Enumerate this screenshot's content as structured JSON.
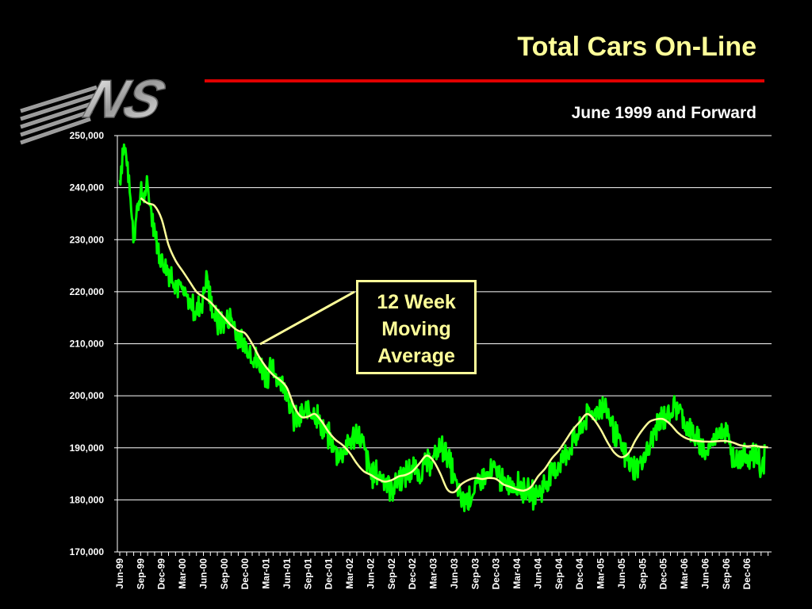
{
  "header": {
    "title": "Total Cars On-Line",
    "subtitle": "June 1999 and Forward",
    "rule_color": "#e00000",
    "logo_text": "NS"
  },
  "callout": {
    "lines": [
      "12 Week",
      "Moving",
      "Average"
    ],
    "color": "#ffff99"
  },
  "colors": {
    "background": "#000000",
    "daily_series": "#00ff00",
    "moving_average": "#ffff99",
    "title": "#ffff99",
    "gridlines": "#ffffff"
  },
  "chart_data": {
    "type": "line",
    "title": "Total Cars On-Line",
    "subtitle": "June 1999 and Forward",
    "xlabel": "",
    "ylabel": "",
    "ylim": [
      170000,
      250000
    ],
    "yticks": [
      170000,
      180000,
      190000,
      200000,
      210000,
      220000,
      230000,
      240000,
      250000
    ],
    "ytick_labels": [
      "170,000",
      "180,000",
      "190,000",
      "200,000",
      "210,000",
      "220,000",
      "230,000",
      "240,000",
      "250,000"
    ],
    "xtick_labels": [
      "Jun-99",
      "Sep-99",
      "Dec-99",
      "Mar-00",
      "Jun-00",
      "Sep-00",
      "Dec-00",
      "Mar-01",
      "Jun-01",
      "Sep-01",
      "Dec-01",
      "Mar-02",
      "Jun-02",
      "Sep-02",
      "Dec-02",
      "Mar-03",
      "Jun-03",
      "Sep-03",
      "Dec-03",
      "Mar-04",
      "Jun-04",
      "Sep-04",
      "Dec-04",
      "Mar-05",
      "Jun-05",
      "Sep-05",
      "Dec-05",
      "Mar-06",
      "Jun-06",
      "Sep-06",
      "Dec-06"
    ],
    "grid": true,
    "series": [
      {
        "style": "daily",
        "color": "#00ff00",
        "months": [
          0,
          0.5,
          1,
          1.5,
          2,
          2.5,
          3,
          3.5,
          4,
          4.5,
          5,
          5.5,
          6,
          7,
          8,
          9,
          10,
          11,
          12,
          12.5,
          13,
          14,
          15,
          16,
          17,
          18,
          19,
          20,
          21,
          22,
          23,
          24,
          25,
          26,
          27,
          28,
          29,
          30,
          31,
          32,
          33,
          34,
          35,
          36,
          37,
          38,
          39,
          40,
          41,
          42,
          43,
          44,
          45,
          46,
          47,
          48,
          49,
          50,
          51,
          52,
          53,
          54,
          55,
          56,
          57,
          58,
          59,
          60,
          61,
          62,
          63,
          64,
          65,
          66,
          67,
          68,
          69,
          70,
          71,
          72,
          73,
          74,
          75,
          76,
          77,
          78,
          79,
          80,
          81,
          82,
          83,
          84,
          85,
          86,
          87,
          88,
          89,
          90,
          91,
          91.5,
          92,
          92.5
        ],
        "values": [
          241000,
          248000,
          246000,
          238000,
          231000,
          236000,
          239000,
          238000,
          240000,
          236000,
          232000,
          228000,
          226000,
          224000,
          222000,
          220000,
          218000,
          216000,
          219000,
          223000,
          218000,
          214000,
          214000,
          215000,
          211000,
          210000,
          208000,
          206000,
          204000,
          205000,
          203000,
          201000,
          195000,
          196000,
          197000,
          197000,
          194000,
          192000,
          189000,
          189000,
          191000,
          193000,
          190000,
          185000,
          185000,
          184000,
          182000,
          184000,
          185000,
          186000,
          185000,
          187000,
          188000,
          190000,
          189000,
          184000,
          180000,
          180000,
          182000,
          184000,
          185000,
          186000,
          183000,
          183000,
          183000,
          182000,
          181000,
          181000,
          183000,
          185000,
          187000,
          189000,
          191000,
          193000,
          196000,
          197000,
          198000,
          197000,
          193000,
          190000,
          187000,
          186000,
          188000,
          190000,
          194000,
          196000,
          197000,
          198000,
          195000,
          193000,
          191000,
          189000,
          191000,
          194000,
          193000,
          188000,
          188000,
          189000,
          188000,
          189000,
          185000,
          188000
        ]
      },
      {
        "name": "12 Week Moving Average",
        "style": "moving-average",
        "color": "#ffff99",
        "months": [
          3,
          4,
          5,
          6,
          7,
          8,
          9,
          10,
          11,
          12,
          13,
          14,
          15,
          16,
          17,
          18,
          19,
          20,
          21,
          22,
          23,
          24,
          25,
          26,
          27,
          28,
          29,
          30,
          31,
          32,
          33,
          34,
          35,
          36,
          37,
          38,
          39,
          40,
          41,
          42,
          43,
          44,
          45,
          46,
          47,
          48,
          49,
          50,
          51,
          52,
          53,
          54,
          55,
          56,
          57,
          58,
          59,
          60,
          61,
          62,
          63,
          64,
          65,
          66,
          67,
          68,
          69,
          70,
          71,
          72,
          73,
          74,
          75,
          76,
          77,
          78,
          79,
          80,
          81,
          82,
          83,
          84,
          85,
          86,
          87,
          88,
          89,
          90,
          91,
          92,
          93
        ],
        "values": [
          238000,
          237000,
          236500,
          234000,
          229000,
          226000,
          224000,
          222000,
          220000,
          219000,
          218000,
          216500,
          215000,
          213500,
          212500,
          212000,
          210000,
          207500,
          205500,
          204000,
          203000,
          201500,
          198000,
          196000,
          196000,
          196500,
          195000,
          193000,
          191500,
          190500,
          189000,
          187000,
          185500,
          184800,
          184000,
          183500,
          183800,
          184500,
          184800,
          185500,
          187000,
          188500,
          187500,
          185000,
          182000,
          181500,
          183000,
          183800,
          184200,
          184000,
          184200,
          184000,
          183000,
          182500,
          182000,
          181800,
          182500,
          184500,
          186000,
          188000,
          189500,
          191500,
          193500,
          195000,
          196500,
          195500,
          193500,
          191000,
          189000,
          188200,
          189000,
          191500,
          193500,
          195000,
          195500,
          195500,
          194500,
          193000,
          192000,
          191500,
          191300,
          191200,
          191200,
          191300,
          191300,
          191000,
          190500,
          190300,
          190400,
          190200,
          190100
        ]
      }
    ]
  }
}
